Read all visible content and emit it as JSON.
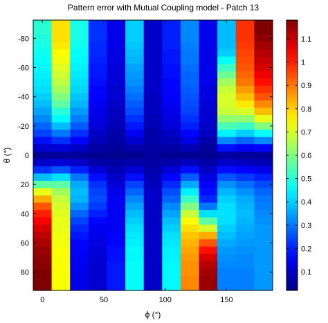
{
  "chart_data": {
    "type": "heatmap",
    "title": "Pattern error with Mutual Coupling model - Patch 13",
    "xlabel": "ϕ (°)",
    "ylabel": "θ (°)",
    "x": [
      0,
      15,
      30,
      45,
      60,
      75,
      90,
      105,
      120,
      135,
      150,
      165,
      180
    ],
    "y": [
      -90,
      -85,
      -80,
      -75,
      -70,
      -65,
      -60,
      -55,
      -50,
      -45,
      -40,
      -35,
      -30,
      -25,
      -20,
      -15,
      -10,
      -5,
      0,
      5,
      10,
      15,
      20,
      25,
      30,
      35,
      40,
      45,
      50,
      55,
      60,
      65,
      70,
      75,
      80,
      85,
      90
    ],
    "xlim": [
      -7.5,
      187.5
    ],
    "ylim": [
      -92.5,
      92.5
    ],
    "xticks": [
      0,
      50,
      100,
      150
    ],
    "yticks": [
      -80,
      -60,
      -40,
      -20,
      0,
      20,
      40,
      60,
      80
    ],
    "y_direction": "reversed",
    "colorbar": {
      "ticks": [
        0.1,
        0.2,
        0.3,
        0.4,
        0.5,
        0.6,
        0.7,
        0.8,
        0.9,
        1,
        1.1
      ],
      "range": [
        0.02,
        1.18
      ],
      "colormap": "jet",
      "placement": "right"
    },
    "values": [
      [
        0.5,
        0.78,
        0.48,
        0.22,
        0.14,
        0.4,
        0.1,
        0.2,
        0.32,
        0.14,
        0.38,
        0.98,
        1.18
      ],
      [
        0.5,
        0.78,
        0.48,
        0.22,
        0.14,
        0.4,
        0.1,
        0.2,
        0.32,
        0.14,
        0.38,
        0.98,
        1.18
      ],
      [
        0.49,
        0.78,
        0.48,
        0.22,
        0.14,
        0.4,
        0.1,
        0.2,
        0.32,
        0.14,
        0.38,
        0.98,
        1.16
      ],
      [
        0.48,
        0.77,
        0.47,
        0.21,
        0.14,
        0.39,
        0.1,
        0.2,
        0.31,
        0.14,
        0.38,
        0.97,
        1.14
      ],
      [
        0.47,
        0.75,
        0.46,
        0.21,
        0.13,
        0.38,
        0.1,
        0.19,
        0.3,
        0.14,
        0.4,
        0.96,
        1.12
      ],
      [
        0.46,
        0.73,
        0.45,
        0.2,
        0.13,
        0.37,
        0.1,
        0.19,
        0.3,
        0.14,
        0.46,
        0.95,
        1.1
      ],
      [
        0.45,
        0.71,
        0.44,
        0.19,
        0.12,
        0.35,
        0.1,
        0.18,
        0.29,
        0.14,
        0.52,
        0.94,
        1.08
      ],
      [
        0.44,
        0.69,
        0.43,
        0.19,
        0.12,
        0.34,
        0.1,
        0.18,
        0.28,
        0.14,
        0.58,
        0.92,
        1.05
      ],
      [
        0.43,
        0.67,
        0.42,
        0.18,
        0.12,
        0.33,
        0.1,
        0.17,
        0.28,
        0.14,
        0.64,
        0.9,
        1.02
      ],
      [
        0.42,
        0.64,
        0.41,
        0.17,
        0.11,
        0.31,
        0.1,
        0.17,
        0.27,
        0.13,
        0.68,
        0.86,
        0.98
      ],
      [
        0.4,
        0.6,
        0.39,
        0.16,
        0.11,
        0.29,
        0.09,
        0.16,
        0.26,
        0.13,
        0.7,
        0.82,
        0.94
      ],
      [
        0.38,
        0.56,
        0.37,
        0.15,
        0.1,
        0.27,
        0.09,
        0.15,
        0.25,
        0.12,
        0.7,
        0.77,
        0.88
      ],
      [
        0.35,
        0.5,
        0.34,
        0.14,
        0.09,
        0.25,
        0.09,
        0.14,
        0.24,
        0.11,
        0.68,
        0.7,
        0.82
      ],
      [
        0.32,
        0.45,
        0.31,
        0.13,
        0.09,
        0.22,
        0.08,
        0.13,
        0.22,
        0.11,
        0.62,
        0.62,
        0.72
      ],
      [
        0.28,
        0.38,
        0.27,
        0.12,
        0.08,
        0.19,
        0.08,
        0.12,
        0.2,
        0.1,
        0.54,
        0.52,
        0.6
      ],
      [
        0.24,
        0.3,
        0.22,
        0.1,
        0.07,
        0.15,
        0.07,
        0.1,
        0.17,
        0.09,
        0.44,
        0.4,
        0.46
      ],
      [
        0.18,
        0.22,
        0.17,
        0.08,
        0.06,
        0.11,
        0.07,
        0.08,
        0.13,
        0.07,
        0.32,
        0.28,
        0.32
      ],
      [
        0.11,
        0.12,
        0.1,
        0.06,
        0.05,
        0.07,
        0.06,
        0.06,
        0.08,
        0.05,
        0.18,
        0.15,
        0.17
      ],
      [
        0.05,
        0.05,
        0.05,
        0.04,
        0.04,
        0.04,
        0.05,
        0.04,
        0.04,
        0.04,
        0.06,
        0.05,
        0.05
      ],
      [
        0.1,
        0.12,
        0.1,
        0.07,
        0.06,
        0.07,
        0.06,
        0.07,
        0.09,
        0.07,
        0.1,
        0.09,
        0.08
      ],
      [
        0.22,
        0.26,
        0.2,
        0.12,
        0.08,
        0.12,
        0.07,
        0.12,
        0.18,
        0.1,
        0.18,
        0.16,
        0.14
      ],
      [
        0.38,
        0.42,
        0.3,
        0.18,
        0.1,
        0.18,
        0.08,
        0.17,
        0.27,
        0.13,
        0.26,
        0.23,
        0.2
      ],
      [
        0.56,
        0.56,
        0.36,
        0.22,
        0.12,
        0.24,
        0.09,
        0.21,
        0.36,
        0.16,
        0.33,
        0.29,
        0.25
      ],
      [
        0.72,
        0.64,
        0.38,
        0.24,
        0.14,
        0.28,
        0.1,
        0.25,
        0.44,
        0.18,
        0.37,
        0.33,
        0.28
      ],
      [
        0.84,
        0.68,
        0.37,
        0.25,
        0.15,
        0.32,
        0.1,
        0.28,
        0.52,
        0.21,
        0.4,
        0.36,
        0.3
      ],
      [
        0.94,
        0.7,
        0.33,
        0.23,
        0.15,
        0.35,
        0.1,
        0.32,
        0.6,
        0.3,
        0.42,
        0.37,
        0.31
      ],
      [
        1.0,
        0.71,
        0.28,
        0.2,
        0.15,
        0.38,
        0.1,
        0.35,
        0.68,
        0.42,
        0.42,
        0.38,
        0.32
      ],
      [
        1.04,
        0.72,
        0.24,
        0.17,
        0.15,
        0.4,
        0.1,
        0.38,
        0.74,
        0.56,
        0.42,
        0.37,
        0.33
      ],
      [
        1.08,
        0.72,
        0.21,
        0.15,
        0.15,
        0.42,
        0.1,
        0.4,
        0.78,
        0.7,
        0.4,
        0.36,
        0.34
      ],
      [
        1.11,
        0.73,
        0.19,
        0.14,
        0.16,
        0.43,
        0.1,
        0.42,
        0.81,
        0.84,
        0.38,
        0.35,
        0.34
      ],
      [
        1.13,
        0.73,
        0.17,
        0.13,
        0.17,
        0.44,
        0.1,
        0.43,
        0.83,
        0.94,
        0.36,
        0.34,
        0.34
      ],
      [
        1.15,
        0.74,
        0.16,
        0.12,
        0.18,
        0.45,
        0.1,
        0.44,
        0.85,
        1.02,
        0.34,
        0.33,
        0.34
      ],
      [
        1.16,
        0.74,
        0.15,
        0.12,
        0.18,
        0.45,
        0.1,
        0.44,
        0.86,
        1.08,
        0.33,
        0.32,
        0.34
      ],
      [
        1.17,
        0.74,
        0.15,
        0.11,
        0.19,
        0.46,
        0.1,
        0.45,
        0.87,
        1.12,
        0.32,
        0.32,
        0.34
      ],
      [
        1.18,
        0.74,
        0.14,
        0.11,
        0.19,
        0.46,
        0.1,
        0.45,
        0.87,
        1.14,
        0.31,
        0.31,
        0.34
      ],
      [
        1.18,
        0.74,
        0.14,
        0.11,
        0.19,
        0.46,
        0.1,
        0.45,
        0.88,
        1.15,
        0.31,
        0.31,
        0.34
      ],
      [
        1.18,
        0.74,
        0.14,
        0.11,
        0.19,
        0.46,
        0.1,
        0.45,
        0.88,
        1.15,
        0.31,
        0.31,
        0.34
      ]
    ]
  }
}
